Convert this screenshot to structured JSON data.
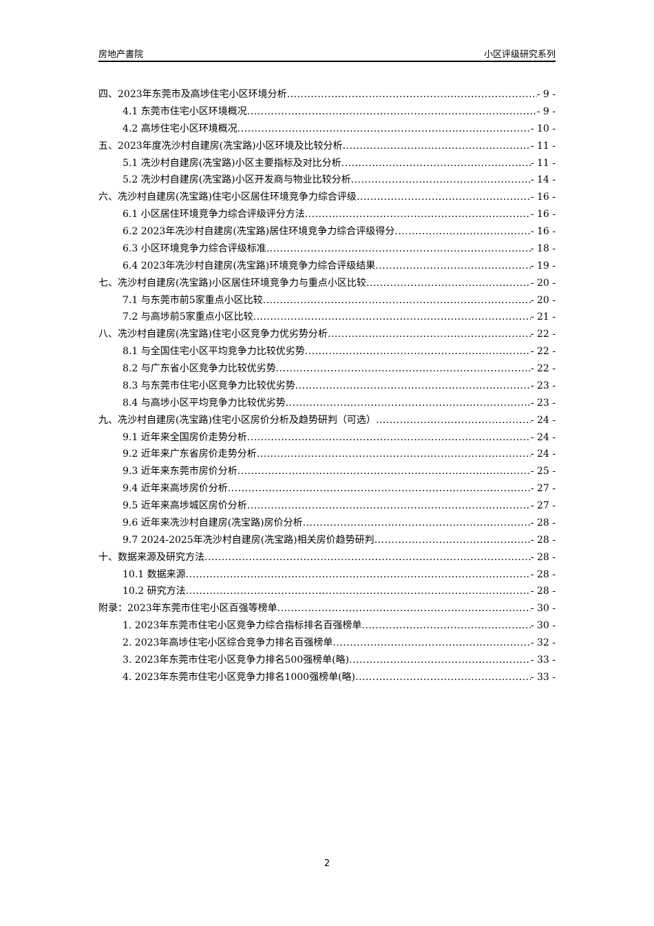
{
  "header": {
    "left": "房地产書院",
    "right": "小区评级研究系列"
  },
  "toc": [
    {
      "level": 1,
      "title": "四、2023年东莞市及高埗住宅小区环境分析",
      "page": "- 9 -"
    },
    {
      "level": 2,
      "title": "4.1 东莞市住宅小区环境概况",
      "page": "- 9 -"
    },
    {
      "level": 2,
      "title": "4.2 高埗住宅小区环境概况",
      "page": "- 10 -"
    },
    {
      "level": 1,
      "title": "五、2023年度冼沙村自建房(冼宝路)小区环境及比较分析",
      "page": "- 11 -"
    },
    {
      "level": 2,
      "title": "5.1 冼沙村自建房(冼宝路)小区主要指标及对比分析",
      "page": "- 11 -"
    },
    {
      "level": 2,
      "title": "5.2 冼沙村自建房(冼宝路)小区开发商与物业比较分析",
      "page": "- 14 -"
    },
    {
      "level": 1,
      "title": "六、冼沙村自建房(冼宝路)住宅小区居住环境竞争力综合评级",
      "page": "- 16 -"
    },
    {
      "level": 2,
      "title": "6.1 小区居住环境竞争力综合评级评分方法",
      "page": "- 16 -"
    },
    {
      "level": 2,
      "title": "6.2 2023年冼沙村自建房(冼宝路)居住环境竞争力综合评级得分",
      "page": "- 16 -"
    },
    {
      "level": 2,
      "title": "6.3 小区环境竞争力综合评级标准",
      "page": "- 18 -"
    },
    {
      "level": 2,
      "title": "6.4 2023年冼沙村自建房(冼宝路)环境竞争力综合评级结果",
      "page": "- 19 -"
    },
    {
      "level": 1,
      "title": "七、冼沙村自建房(冼宝路)小区居住环境竞争力与重点小区比较",
      "page": "- 20 -"
    },
    {
      "level": 2,
      "title": "7.1 与东莞市前5家重点小区比较",
      "page": "- 20 -"
    },
    {
      "level": 2,
      "title": "7.2 与高埗前5家重点小区比较",
      "page": "- 21 -"
    },
    {
      "level": 1,
      "title": "八、冼沙村自建房(冼宝路)住宅小区竞争力优劣势分析",
      "page": "- 22 -"
    },
    {
      "level": 2,
      "title": "8.1 与全国住宅小区平均竞争力比较优劣势",
      "page": "- 22 -"
    },
    {
      "level": 2,
      "title": "8.2 与广东省小区竞争力比较优劣势",
      "page": "- 22 -"
    },
    {
      "level": 2,
      "title": "8.3 与东莞市住宅小区竞争力比较优劣势",
      "page": "- 23 -"
    },
    {
      "level": 2,
      "title": "8.4 与高埗小区平均竞争力比较优劣势",
      "page": "- 23 -"
    },
    {
      "level": 1,
      "title": "九、冼沙村自建房(冼宝路)住宅小区房价分析及趋势研判（可选）",
      "page": "- 24 -"
    },
    {
      "level": 2,
      "title": "9.1 近年来全国房价走势分析",
      "page": "- 24 -"
    },
    {
      "level": 2,
      "title": "9.2 近年来广东省房价走势分析",
      "page": "- 24 -"
    },
    {
      "level": 2,
      "title": "9.3 近年来东莞市房价分析",
      "page": "- 25 -"
    },
    {
      "level": 2,
      "title": "9.4 近年来高埗房价分析",
      "page": "- 27 -"
    },
    {
      "level": 2,
      "title": "9.5 近年来高埗城区房价分析",
      "page": "- 27 -"
    },
    {
      "level": 2,
      "title": "9.6 近年来冼沙村自建房(冼宝路)房价分析",
      "page": "- 28 -"
    },
    {
      "level": 2,
      "title": "9.7 2024-2025年冼沙村自建房(冼宝路)相关房价趋势研判",
      "page": "- 28 -"
    },
    {
      "level": 1,
      "title": "十、数据来源及研究方法",
      "page": "- 28 -"
    },
    {
      "level": 2,
      "title": "10.1 数据来源",
      "page": "- 28 -"
    },
    {
      "level": 2,
      "title": "10.2 研究方法",
      "page": "- 28 -"
    },
    {
      "level": 1,
      "title": "附录：2023年东莞市住宅小区百强等榜单",
      "page": "- 30 -"
    },
    {
      "level": 2,
      "title": "1. 2023年东莞市住宅小区竞争力综合指标排名百强榜单",
      "page": "- 30 -"
    },
    {
      "level": 2,
      "title": "2. 2023年高埗住宅小区综合竞争力排名百强榜单",
      "page": "- 32 -"
    },
    {
      "level": 2,
      "title": "3. 2023年东莞市住宅小区竞争力排名500强榜单(略)",
      "page": "- 33 -"
    },
    {
      "level": 2,
      "title": "4. 2023年东莞市住宅小区竞争力排名1000强榜单(略)",
      "page": "- 33 -"
    }
  ],
  "footer": {
    "page_number": "2"
  }
}
